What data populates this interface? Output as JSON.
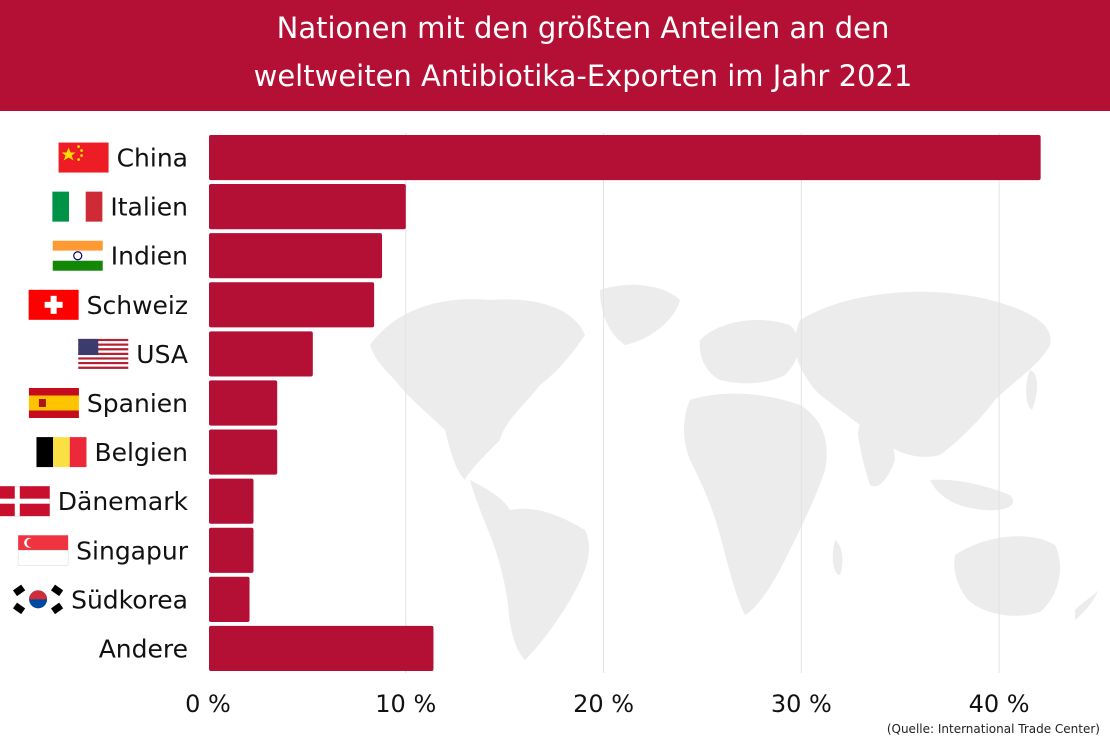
{
  "chart_data": {
    "type": "bar",
    "orientation": "horizontal",
    "title": "Nationen mit den größten Anteilen an den weltweiten Antibiotika-Exporten im Jahr 2021",
    "title_lines": [
      "Nationen mit den größten Anteilen an den",
      "weltweiten Antibiotika-Exporten im Jahr 2021"
    ],
    "categories": [
      "China",
      "Italien",
      "Indien",
      "Schweiz",
      "USA",
      "Spanien",
      "Belgien",
      "Dänemark",
      "Singapur",
      "Südkorea",
      "Andere"
    ],
    "flag_icons": [
      "china-flag-icon",
      "italy-flag-icon",
      "india-flag-icon",
      "switzerland-flag-icon",
      "usa-flag-icon",
      "spain-flag-icon",
      "belgium-flag-icon",
      "denmark-flag-icon",
      "singapore-flag-icon",
      "south-korea-flag-icon",
      ""
    ],
    "values": [
      42.1,
      10.0,
      8.8,
      8.4,
      5.3,
      3.5,
      3.5,
      2.3,
      2.3,
      2.1,
      11.4
    ],
    "xlim": [
      0,
      45
    ],
    "xticks": [
      0,
      10,
      20,
      30,
      40
    ],
    "xtick_labels": [
      "0 %",
      "10 %",
      "20 %",
      "30 %",
      "40 %"
    ],
    "xlabel": "",
    "ylabel": "",
    "grid": true,
    "bar_color": "#b40f35",
    "header_color": "#b40f35",
    "background_decoration": "world-map-icon",
    "source": "(Quelle: International Trade Center)"
  }
}
